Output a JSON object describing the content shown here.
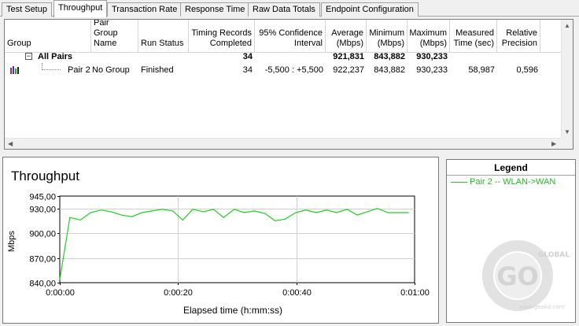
{
  "tabs": [
    {
      "label": "Test Setup",
      "active": false
    },
    {
      "label": "Throughput",
      "active": true
    },
    {
      "label": "Transaction Rate",
      "active": false
    },
    {
      "label": "Response Time",
      "active": false
    },
    {
      "label": "Raw Data Totals",
      "active": false
    },
    {
      "label": "Endpoint Configuration",
      "active": false
    }
  ],
  "table": {
    "columns": [
      "Group",
      "Pair Group Name",
      "Run Status",
      "Timing Records Completed",
      "95% Confidence Interval",
      "Average (Mbps)",
      "Minimum (Mbps)",
      "Maximum (Mbps)",
      "Measured Time (sec)",
      "Relative Precision"
    ],
    "group_row": {
      "name": "All Pairs",
      "expander": "−",
      "records": "34",
      "average": "921,831",
      "minimum": "843,882",
      "maximum": "930,233"
    },
    "rows": [
      {
        "pair": "Pair 2",
        "pair_group": "No Group",
        "status": "Finished",
        "records": "34",
        "confidence": "-5,500 : +5,500",
        "average": "922,237",
        "minimum": "843,882",
        "maximum": "930,233",
        "measured_time": "58,987",
        "precision": "0,596"
      }
    ]
  },
  "chart_data": {
    "type": "line",
    "title": "Throughput",
    "ylabel": "Mbps",
    "xlabel": "Elapsed time (h:mm:ss)",
    "ylim": [
      840,
      945
    ],
    "y_ticks": [
      "945,00",
      "930,00",
      "900,00",
      "870,00",
      "840,00"
    ],
    "y_tick_values": [
      945,
      930,
      900,
      870,
      840
    ],
    "x_ticks": [
      "0:00:00",
      "0:00:20",
      "0:00:40",
      "0:01:00"
    ],
    "x_tick_values": [
      0,
      20,
      40,
      60
    ],
    "xlim": [
      0,
      60
    ],
    "grid": true,
    "series": [
      {
        "name": "Pair 2 -- WLAN->WAN",
        "color": "#22cc22",
        "x": [
          0,
          1.7,
          3.5,
          5.2,
          7.0,
          8.7,
          10.4,
          12.2,
          13.9,
          15.6,
          17.3,
          19.1,
          20.8,
          22.5,
          24.3,
          26.0,
          27.7,
          29.5,
          31.2,
          32.9,
          34.7,
          36.4,
          38.1,
          39.9,
          41.6,
          43.4,
          45.1,
          46.8,
          48.6,
          50.3,
          52.0,
          53.7,
          55.5,
          57.2,
          59.0
        ],
        "y": [
          844,
          919,
          916,
          925,
          928,
          926,
          922,
          920,
          925,
          927,
          929,
          927,
          916,
          929,
          926,
          929,
          919,
          929,
          925,
          927,
          924,
          915,
          917,
          925,
          928,
          925,
          928,
          925,
          929,
          922,
          926,
          930,
          925,
          925,
          925
        ]
      }
    ]
  },
  "legend": {
    "title": "Legend",
    "items": [
      {
        "label": "Pair 2 -- WLAN->WAN",
        "color": "#22cc22"
      }
    ]
  },
  "watermark": {
    "brand": "GLOBAL",
    "url": "www.geekd.com"
  }
}
